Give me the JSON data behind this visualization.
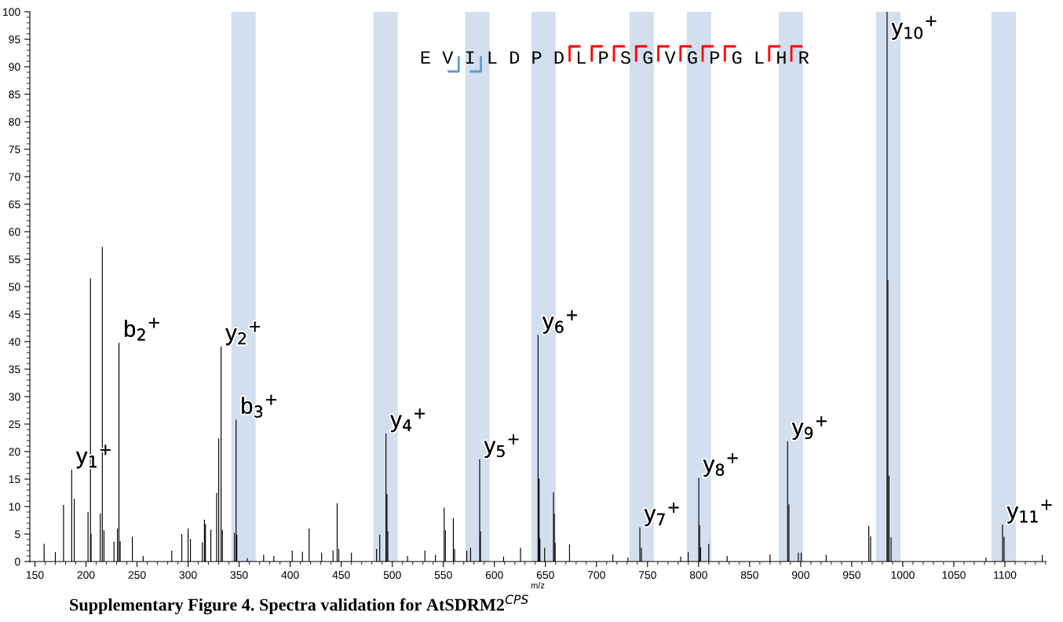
{
  "chart_data": {
    "type": "bar",
    "xlabel": "m/z",
    "x": [
      159,
      170,
      178,
      186,
      188.5,
      202,
      204.4,
      205,
      214,
      216,
      217.6,
      227.4,
      230.8,
      232.3,
      233.5,
      245.4,
      256,
      284,
      293.8,
      300,
      302.3,
      314,
      316,
      317,
      322.3,
      328,
      330,
      332.3,
      333.6,
      345.4,
      347,
      347.7,
      358,
      374,
      384,
      402,
      412,
      418.5,
      430.8,
      442,
      446,
      447.6,
      460,
      484.6,
      487.7,
      493.8,
      494.8,
      495.6,
      514.9,
      532,
      542.3,
      550.8,
      552,
      559.8,
      561,
      573,
      576.7,
      585.6,
      586.4,
      609,
      625.6,
      642.8,
      643.8,
      644.6,
      649.2,
      657.9,
      658.7,
      659.5,
      673.6,
      716,
      730.8,
      742.5,
      744,
      782.5,
      789.8,
      800.2,
      801,
      802,
      810,
      828,
      870,
      887.2,
      888.5,
      897.7,
      900.5,
      925,
      966.7,
      968.5,
      984.6,
      985.4,
      986.5,
      988.5,
      1081.5,
      1097.7,
      1099.2,
      1136.6
    ],
    "values": [
      3.2,
      1.7,
      10.3,
      16.7,
      11.4,
      9,
      51.5,
      5,
      8.7,
      57.2,
      5.7,
      3.6,
      6,
      39.8,
      3.7,
      4.5,
      1,
      2,
      5,
      6,
      4.1,
      3.5,
      7.6,
      6.8,
      5.8,
      12.5,
      22.4,
      39.1,
      5.8,
      5.2,
      25.8,
      4.9,
      0.6,
      1.2,
      1,
      2,
      1.8,
      6,
      1.6,
      2,
      10.6,
      2.3,
      1.6,
      2.3,
      4.9,
      23.3,
      12.3,
      5.5,
      1,
      2,
      1.2,
      9.8,
      5.7,
      7.9,
      2.3,
      2,
      2.5,
      18.6,
      5.5,
      0.9,
      2.5,
      41.2,
      15.1,
      4.2,
      2.5,
      12.6,
      8.7,
      3.4,
      3.1,
      1.3,
      0.7,
      6.2,
      2.5,
      0.9,
      1.7,
      15.2,
      6.6,
      2.6,
      3.2,
      1,
      1.3,
      21.9,
      10.4,
      1.6,
      1.6,
      1.2,
      6.5,
      4.6,
      100,
      51.2,
      15.6,
      4.4,
      0.7,
      6.7,
      4.5,
      1.2
    ],
    "color": "#000000",
    "xlim": [
      145,
      1140
    ],
    "ylim": [
      0,
      100
    ],
    "xticks": [
      150,
      200,
      250,
      300,
      350,
      400,
      450,
      500,
      550,
      600,
      650,
      700,
      750,
      800,
      850,
      900,
      950,
      1000,
      1050,
      1100
    ],
    "yticks": [
      0,
      5,
      10,
      15,
      20,
      25,
      30,
      35,
      40,
      45,
      50,
      55,
      60,
      65,
      70,
      75,
      80,
      85,
      90,
      95,
      100
    ],
    "grid": false,
    "legend": false,
    "bands": [
      {
        "axis": "x",
        "from": 342.3,
        "to": 366.2,
        "color": "#d3dfee"
      },
      {
        "axis": "x",
        "from": 481.5,
        "to": 505.4,
        "color": "#d3dfee"
      },
      {
        "axis": "x",
        "from": 571.5,
        "to": 595.4,
        "color": "#d3dfee"
      },
      {
        "axis": "x",
        "from": 636.2,
        "to": 660,
        "color": "#d3dfee"
      },
      {
        "axis": "x",
        "from": 732.3,
        "to": 756.2,
        "color": "#d3dfee"
      },
      {
        "axis": "x",
        "from": 788.5,
        "to": 812.3,
        "color": "#d3dfee"
      },
      {
        "axis": "x",
        "from": 878.5,
        "to": 902.3,
        "color": "#d3dfee"
      },
      {
        "axis": "x",
        "from": 973.8,
        "to": 997.7,
        "color": "#d3dfee"
      },
      {
        "axis": "x",
        "from": 1086.9,
        "to": 1110.8,
        "color": "#d3dfee"
      }
    ],
    "annotations": [
      {
        "text": "y$_{1}$$^{+}$",
        "x": 186,
        "y": 16.7
      },
      {
        "text": "b$_{2}$$^{+}$",
        "x": 232.3,
        "y": 39.8
      },
      {
        "text": "y$_{2}$$^{+}$",
        "x": 332.3,
        "y": 39.1
      },
      {
        "text": "b$_{3}$$^{+}$",
        "x": 347,
        "y": 25.8
      },
      {
        "text": "y$_{4}$$^{+}$",
        "x": 493.8,
        "y": 23.3
      },
      {
        "text": "y$_{5}$$^{+}$",
        "x": 585.6,
        "y": 18.6
      },
      {
        "text": "y$_{6}$$^{+}$",
        "x": 642.8,
        "y": 41.2
      },
      {
        "text": "y$_{7}$$^{+}$",
        "x": 742.5,
        "y": 6.2
      },
      {
        "text": "y$_{8}$$^{+}$",
        "x": 800.2,
        "y": 15.2
      },
      {
        "text": "y$_{9}$$^{+}$",
        "x": 887.2,
        "y": 21.9
      },
      {
        "text": "y$_{10}$$^{+}$",
        "x": 984.6,
        "y": 100
      },
      {
        "text": "y$_{11}$$^{+}$",
        "x": 1097.7,
        "y": 6.7
      },
      "E V I L D P D L P S G V G P G L H R",
      "Supplementary Figure 4. Spectra validation for AtSDRM2$^{CPS}$"
    ]
  }
}
